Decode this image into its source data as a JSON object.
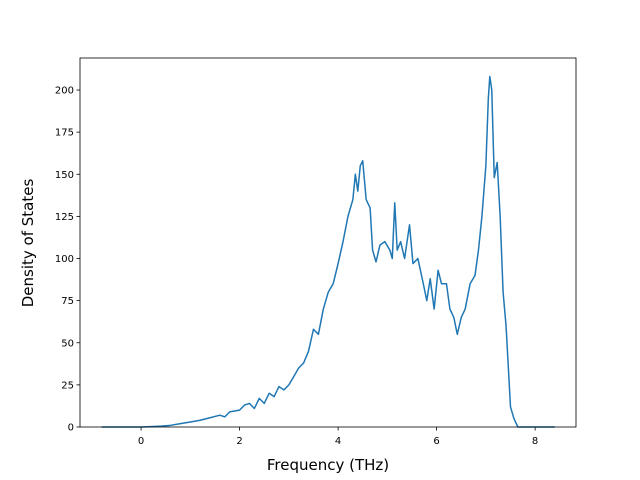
{
  "chart_data": {
    "type": "line",
    "x_label": "Frequency (THz)",
    "y_label": "Density of States",
    "x": [
      -0.8,
      -0.4,
      0.0,
      0.2,
      0.4,
      0.6,
      0.8,
      1.0,
      1.2,
      1.4,
      1.6,
      1.7,
      1.8,
      2.0,
      2.1,
      2.2,
      2.3,
      2.4,
      2.5,
      2.6,
      2.7,
      2.8,
      2.9,
      3.0,
      3.1,
      3.2,
      3.3,
      3.4,
      3.5,
      3.6,
      3.7,
      3.8,
      3.9,
      4.0,
      4.1,
      4.2,
      4.3,
      4.35,
      4.4,
      4.45,
      4.5,
      4.57,
      4.65,
      4.7,
      4.77,
      4.85,
      4.95,
      5.05,
      5.1,
      5.15,
      5.2,
      5.27,
      5.35,
      5.45,
      5.52,
      5.62,
      5.73,
      5.8,
      5.87,
      5.95,
      6.03,
      6.1,
      6.2,
      6.27,
      6.35,
      6.42,
      6.5,
      6.58,
      6.68,
      6.78,
      6.85,
      6.92,
      7.0,
      7.05,
      7.08,
      7.12,
      7.17,
      7.23,
      7.29,
      7.35,
      7.41,
      7.5,
      7.57,
      7.65,
      8.0,
      8.4
    ],
    "series": [
      {
        "color": "#1f77b4",
        "values": [
          0,
          0,
          0,
          0.2,
          0.5,
          1,
          2,
          3,
          4,
          5.5,
          7,
          6,
          9,
          10,
          13,
          14,
          11,
          17,
          14,
          20,
          18,
          24,
          22,
          25,
          30,
          35,
          38,
          45,
          58,
          55,
          70,
          80,
          85,
          97,
          110,
          125,
          135,
          150,
          140,
          155,
          158,
          135,
          130,
          105,
          98,
          108,
          110,
          105,
          100,
          133,
          105,
          110,
          100,
          120,
          97,
          100,
          85,
          75,
          88,
          70,
          93,
          85,
          85,
          70,
          65,
          55,
          65,
          70,
          85,
          90,
          105,
          125,
          155,
          195,
          208,
          200,
          148,
          157,
          125,
          80,
          60,
          12,
          5,
          0,
          0,
          0
        ]
      }
    ],
    "xlim": [
      -1.24,
      8.83
    ],
    "xticks": [
      0,
      2,
      4,
      6,
      8
    ],
    "ylim": [
      0,
      219
    ],
    "yticks": [
      0,
      25,
      50,
      75,
      100,
      125,
      150,
      175,
      200
    ],
    "grid": false
  }
}
